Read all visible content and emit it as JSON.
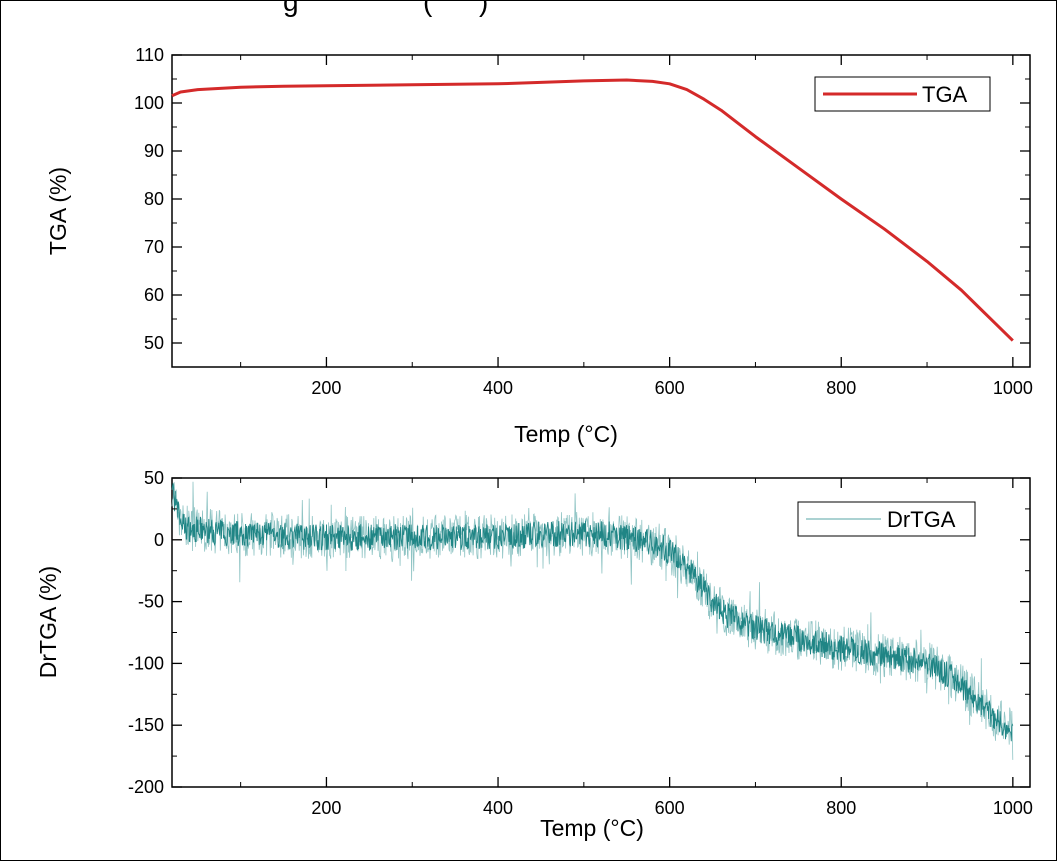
{
  "caption_fragment": "g                (      )",
  "colors": {
    "tga": "#d42a2a",
    "drtga": "#1f8585",
    "drtga_light": "#8fc4c4",
    "axis": "#000000"
  },
  "chart_data": [
    {
      "type": "line",
      "title": "",
      "xlabel": "Temp (°C)",
      "ylabel": "TGA (%)",
      "xlim": [
        20,
        1020
      ],
      "ylim": [
        45,
        110
      ],
      "xticks": [
        200,
        400,
        600,
        800,
        1000
      ],
      "yticks": [
        50,
        60,
        70,
        80,
        90,
        100,
        110
      ],
      "grid": false,
      "legend_position": "top-right",
      "series": [
        {
          "name": "TGA",
          "color": "#d42a2a",
          "x": [
            20,
            30,
            50,
            100,
            150,
            200,
            300,
            400,
            450,
            500,
            550,
            580,
            600,
            620,
            640,
            660,
            700,
            750,
            800,
            850,
            900,
            940,
            960,
            980,
            1000
          ],
          "y": [
            101.5,
            102.3,
            102.8,
            103.3,
            103.5,
            103.6,
            103.8,
            104.0,
            104.3,
            104.6,
            104.8,
            104.5,
            104.0,
            102.8,
            100.8,
            98.5,
            93.0,
            86.5,
            80.0,
            73.8,
            67.0,
            61.0,
            57.5,
            54.0,
            50.5
          ]
        }
      ]
    },
    {
      "type": "line",
      "title": "",
      "xlabel": "Temp (°C)",
      "ylabel": "DrTGA (%)",
      "xlim": [
        20,
        1020
      ],
      "ylim": [
        -200,
        50
      ],
      "xticks": [
        200,
        400,
        600,
        800,
        1000
      ],
      "yticks": [
        -200,
        -150,
        -100,
        -50,
        0,
        50
      ],
      "grid": false,
      "legend_position": "top-right",
      "series": [
        {
          "name": "DrTGA",
          "color": "#1f8585",
          "x": [
            20,
            25,
            35,
            50,
            100,
            150,
            200,
            300,
            400,
            450,
            500,
            530,
            560,
            590,
            610,
            630,
            650,
            670,
            700,
            750,
            800,
            850,
            900,
            930,
            960,
            980,
            1000
          ],
          "y": [
            45,
            25,
            10,
            8,
            5,
            3,
            2,
            2,
            3,
            4,
            5,
            4,
            1,
            -5,
            -15,
            -30,
            -50,
            -62,
            -72,
            -80,
            -88,
            -93,
            -100,
            -112,
            -130,
            -145,
            -155
          ],
          "noise_amplitude": 18
        }
      ]
    }
  ]
}
